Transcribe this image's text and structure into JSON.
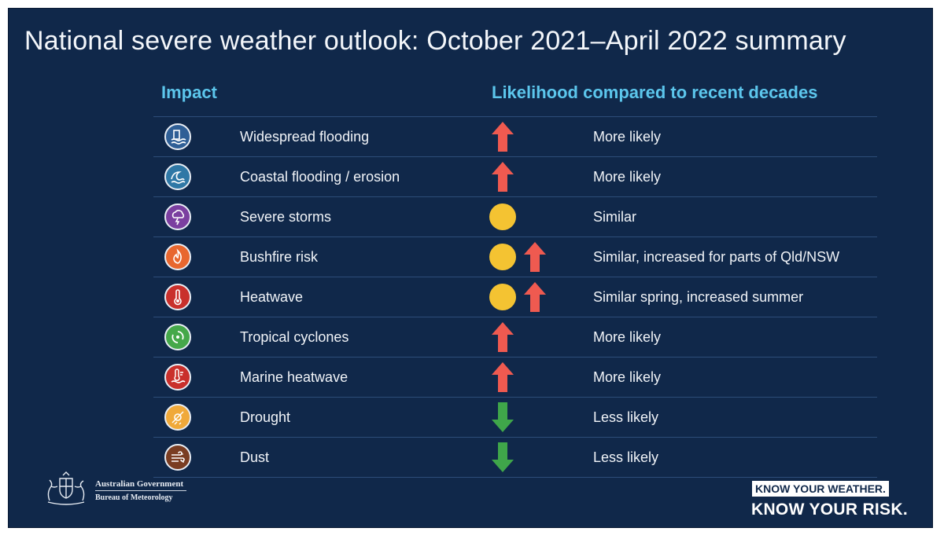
{
  "title": "National severe weather outlook: October 2021–April 2022 summary",
  "headers": {
    "impact": "Impact",
    "likelihood": "Likelihood compared to recent decades"
  },
  "colors": {
    "background": "#10284a",
    "header_text": "#5cc6ec",
    "arrow_up": "#ef5a50",
    "arrow_down": "#3fa64a",
    "similar_circle": "#f4c332"
  },
  "rows": [
    {
      "impact": "Widespread flooding",
      "icon": "flood-icon",
      "icon_color": "#2f5f96",
      "symbols": [
        "up"
      ],
      "likelihood": "More likely"
    },
    {
      "impact": "Coastal flooding / erosion",
      "icon": "wave-icon",
      "icon_color": "#2f78a6",
      "symbols": [
        "up"
      ],
      "likelihood": "More likely"
    },
    {
      "impact": "Severe storms",
      "icon": "storm-icon",
      "icon_color": "#7b3fa0",
      "symbols": [
        "similar"
      ],
      "likelihood": "Similar"
    },
    {
      "impact": "Bushfire risk",
      "icon": "fire-icon",
      "icon_color": "#e8672f",
      "symbols": [
        "similar",
        "up"
      ],
      "likelihood": "Similar, increased for parts of Qld/NSW"
    },
    {
      "impact": "Heatwave",
      "icon": "thermometer-icon",
      "icon_color": "#c9302c",
      "symbols": [
        "similar",
        "up"
      ],
      "likelihood": "Similar spring, increased summer"
    },
    {
      "impact": "Tropical cyclones",
      "icon": "cyclone-icon",
      "icon_color": "#45a84a",
      "symbols": [
        "up"
      ],
      "likelihood": "More likely"
    },
    {
      "impact": "Marine heatwave",
      "icon": "marine-heat-icon",
      "icon_color": "#c9302c",
      "symbols": [
        "up"
      ],
      "likelihood": "More likely"
    },
    {
      "impact": "Drought",
      "icon": "drought-icon",
      "icon_color": "#f0a93a",
      "symbols": [
        "down"
      ],
      "likelihood": "Less likely"
    },
    {
      "impact": "Dust",
      "icon": "dust-icon",
      "icon_color": "#7a3d22",
      "symbols": [
        "down"
      ],
      "likelihood": "Less likely"
    }
  ],
  "footer": {
    "government": "Australian Government",
    "agency": "Bureau of Meteorology",
    "slogan_line1": "KNOW YOUR WEATHER.",
    "slogan_line2": "KNOW YOUR RISK."
  }
}
